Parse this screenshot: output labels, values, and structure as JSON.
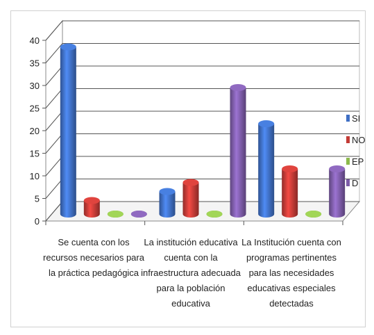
{
  "chart_data": {
    "type": "bar",
    "categories": [
      "Se cuenta con los recursos necesarios para la práctica pedagógica",
      "La institución educativa cuenta con la infraestructura adecuada para la población educativa",
      "La Institución cuenta con programas pertinentes  para las necesidades educativas especiales detectadas"
    ],
    "series": [
      {
        "name": "SI",
        "color": "#3F6FC4",
        "values": [
          37,
          5,
          20
        ]
      },
      {
        "name": "NO",
        "color": "#C33B36",
        "values": [
          3,
          7,
          10
        ]
      },
      {
        "name": "EP",
        "color": "#8DBA4C",
        "values": [
          0,
          0,
          0
        ]
      },
      {
        "name": "D",
        "color": "#7D5CA8",
        "values": [
          0,
          28,
          10
        ]
      }
    ],
    "yticks": [
      0,
      5,
      10,
      15,
      20,
      25,
      30,
      35,
      40
    ],
    "ylim": [
      0,
      40
    ],
    "grid": true,
    "legend": "right",
    "style": "3d-cylinder"
  }
}
